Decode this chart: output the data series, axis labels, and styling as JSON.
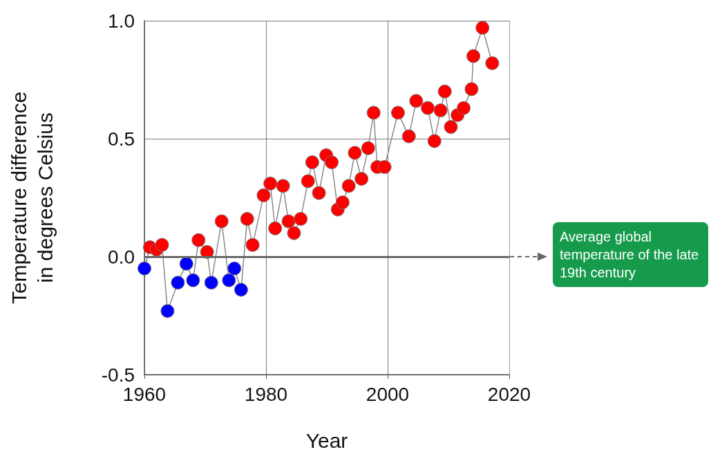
{
  "chart_data": {
    "type": "line",
    "xlabel": "Year",
    "ylabel": "Temperature difference\nin degrees Celsius",
    "annotations": [
      "Average global temperature of the late 19th century"
    ],
    "xlim": [
      1960,
      2020
    ],
    "xticks": [
      1960,
      1980,
      2000,
      2020
    ],
    "ylim": [
      -0.5,
      1.0
    ],
    "yticks": [
      -0.5,
      {
        "value": 0,
        "label": "0.0"
      },
      0.5,
      {
        "value": 1.0,
        "label": "1.0"
      }
    ],
    "grid": true,
    "marker": "circle",
    "line_style": "solid",
    "ref_lines": [
      {
        "axis": "y",
        "value": 0,
        "color": "#666666"
      }
    ],
    "series": [
      {
        "color": "#888888",
        "x": [
          1960.0,
          1960.9,
          1962.0,
          1962.9,
          1963.8,
          1965.5,
          1966.9,
          1968.0,
          1968.9,
          1970.3,
          1971.0,
          1972.7,
          1973.9,
          1974.8,
          1975.9,
          1976.9,
          1977.8,
          1979.6,
          1980.7,
          1981.5,
          1982.8,
          1983.7,
          1984.6,
          1985.7,
          1986.9,
          1987.6,
          1988.7,
          1989.9,
          1990.8,
          1991.8,
          1992.6,
          1993.6,
          1994.6,
          1995.7,
          1996.8,
          1997.7,
          1998.3,
          1999.5,
          2001.7,
          2003.5,
          2004.7,
          2006.6,
          2007.7,
          2008.7,
          2009.4,
          2010.4,
          2011.5,
          2012.5,
          2013.8,
          2014.1,
          2015.6,
          2017.2
        ],
        "values": [
          -0.05,
          0.04,
          0.03,
          0.05,
          -0.23,
          -0.11,
          -0.03,
          -0.1,
          0.07,
          0.02,
          -0.11,
          0.15,
          -0.1,
          -0.05,
          -0.14,
          0.16,
          0.05,
          0.26,
          0.31,
          0.12,
          0.3,
          0.15,
          0.1,
          0.16,
          0.32,
          0.4,
          0.27,
          0.43,
          0.4,
          0.2,
          0.23,
          0.3,
          0.44,
          0.33,
          0.46,
          0.61,
          0.38,
          0.38,
          0.61,
          0.51,
          0.66,
          0.63,
          0.49,
          0.62,
          0.7,
          0.55,
          0.6,
          0.63,
          0.71,
          0.85,
          0.97,
          0.82
        ],
        "colors": [
          "#0000ff",
          "#ff0000",
          "#ff0000",
          "#ff0000",
          "#0000ff",
          "#0000ff",
          "#0000ff",
          "#0000ff",
          "#ff0000",
          "#ff0000",
          "#0000ff",
          "#ff0000",
          "#0000ff",
          "#0000ff",
          "#0000ff",
          "#ff0000",
          "#ff0000",
          "#ff0000",
          "#ff0000",
          "#ff0000",
          "#ff0000",
          "#ff0000",
          "#ff0000",
          "#ff0000",
          "#ff0000",
          "#ff0000",
          "#ff0000",
          "#ff0000",
          "#ff0000",
          "#ff0000",
          "#ff0000",
          "#ff0000",
          "#ff0000",
          "#ff0000",
          "#ff0000",
          "#ff0000",
          "#ff0000",
          "#ff0000",
          "#ff0000",
          "#ff0000",
          "#ff0000",
          "#ff0000",
          "#ff0000",
          "#ff0000",
          "#ff0000",
          "#ff0000",
          "#ff0000",
          "#ff0000",
          "#ff0000",
          "#ff0000",
          "#ff0000",
          "#ff0000"
        ]
      }
    ]
  }
}
